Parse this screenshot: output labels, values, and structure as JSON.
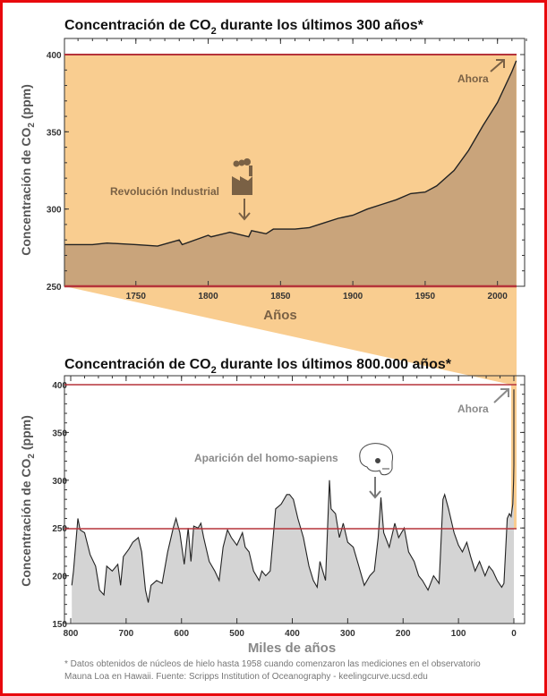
{
  "colors": {
    "border": "#e8090d",
    "top_bg": "#f9cd90",
    "top_fill": "#c9a47b",
    "bottom_fill": "#d4d4d4",
    "ref_line": "#b5333a",
    "line": "#222222",
    "annot_top": "#7a6145",
    "annot_bottom": "#8a8a8a"
  },
  "chart_data": [
    {
      "type": "area",
      "title": {
        "prefix": "Concentración de CO",
        "sub": "2",
        "suffix": " durante los últimos 300 años*"
      },
      "xlabel": "Años",
      "ylabel": {
        "prefix": "Concentración de CO",
        "sub": "2",
        "suffix": " (ppm)"
      },
      "xlim": [
        1701,
        2020
      ],
      "ylim": [
        250,
        400
      ],
      "xticks": [
        "1750",
        "1800",
        "1850",
        "1900",
        "1950",
        "2000"
      ],
      "yticks": [
        "250",
        "300",
        "350",
        "400"
      ],
      "reference_lines": [
        400,
        250
      ],
      "annotations": [
        {
          "text": "Revolución Industrial",
          "x": 1828,
          "icon": "factory-icon"
        },
        {
          "text": "Ahora",
          "x": 2013
        }
      ],
      "x": [
        1701,
        1720,
        1730,
        1750,
        1765,
        1780,
        1782,
        1800,
        1802,
        1815,
        1828,
        1830,
        1840,
        1845,
        1850,
        1860,
        1870,
        1880,
        1890,
        1900,
        1910,
        1920,
        1930,
        1940,
        1950,
        1958,
        1970,
        1980,
        1990,
        2000,
        2010,
        2013
      ],
      "y": [
        277,
        277,
        278,
        277,
        276,
        280,
        277,
        283,
        282,
        285,
        282,
        286,
        284,
        287,
        287,
        287,
        288,
        291,
        294,
        296,
        300,
        303,
        306,
        310,
        311,
        315,
        325,
        338,
        354,
        369,
        389,
        396
      ]
    },
    {
      "type": "area",
      "title": {
        "prefix": "Concentración de CO",
        "sub": "2",
        "suffix": " durante los últimos 800.000 años*"
      },
      "xlabel": "Miles de años",
      "ylabel": {
        "prefix": "Concentración de CO",
        "sub": "2",
        "suffix": " (ppm)"
      },
      "xlim": [
        800,
        0
      ],
      "ylim": [
        150,
        400
      ],
      "xticks": [
        "800",
        "700",
        "600",
        "500",
        "400",
        "300",
        "200",
        "100",
        "0"
      ],
      "yticks": [
        "150",
        "200",
        "250",
        "300",
        "350",
        "400"
      ],
      "reference_lines": [
        400,
        250
      ],
      "annotations": [
        {
          "text": "Aparición del homo-sapiens",
          "x": 240,
          "icon": "skull-icon"
        },
        {
          "text": "Ahora",
          "x": 0
        }
      ],
      "x": [
        798,
        795,
        790,
        787,
        783,
        775,
        765,
        755,
        748,
        740,
        735,
        725,
        715,
        710,
        705,
        695,
        688,
        678,
        672,
        665,
        660,
        655,
        645,
        635,
        625,
        615,
        610,
        603,
        595,
        588,
        583,
        578,
        570,
        565,
        560,
        550,
        540,
        532,
        525,
        517,
        510,
        500,
        490,
        485,
        478,
        470,
        460,
        455,
        448,
        440,
        430,
        420,
        410,
        405,
        398,
        390,
        380,
        370,
        362,
        355,
        350,
        345,
        340,
        333,
        330,
        322,
        315,
        308,
        300,
        290,
        280,
        270,
        260,
        252,
        245,
        240,
        235,
        225,
        215,
        208,
        198,
        190,
        180,
        172,
        165,
        155,
        145,
        135,
        128,
        125,
        118,
        108,
        100,
        93,
        85,
        78,
        70,
        62,
        52,
        45,
        38,
        30,
        22,
        18,
        12,
        8,
        5,
        2,
        0.5,
        0.05,
        0
      ],
      "y": [
        190,
        205,
        240,
        260,
        248,
        245,
        222,
        210,
        185,
        180,
        210,
        205,
        212,
        190,
        220,
        228,
        235,
        240,
        225,
        185,
        172,
        190,
        195,
        192,
        225,
        250,
        260,
        245,
        212,
        250,
        215,
        252,
        250,
        255,
        240,
        215,
        205,
        195,
        230,
        248,
        240,
        232,
        245,
        230,
        225,
        205,
        195,
        205,
        200,
        205,
        270,
        275,
        285,
        285,
        280,
        260,
        240,
        210,
        195,
        188,
        215,
        205,
        195,
        300,
        270,
        265,
        240,
        255,
        235,
        230,
        210,
        190,
        200,
        205,
        240,
        282,
        245,
        230,
        255,
        240,
        250,
        225,
        215,
        200,
        195,
        185,
        200,
        192,
        280,
        285,
        270,
        245,
        232,
        225,
        235,
        220,
        205,
        215,
        200,
        210,
        205,
        195,
        188,
        192,
        260,
        265,
        262,
        275,
        300,
        316,
        395
      ]
    }
  ],
  "footnote": {
    "line1": "* Datos obtenidos de núcleos de hielo hasta 1958 cuando comenzaron las mediciones en el observatorio",
    "line2": "Mauna Loa en Hawaii. Fuente: Scripps Institution of Oceanography - keelingcurve.ucsd.edu"
  }
}
